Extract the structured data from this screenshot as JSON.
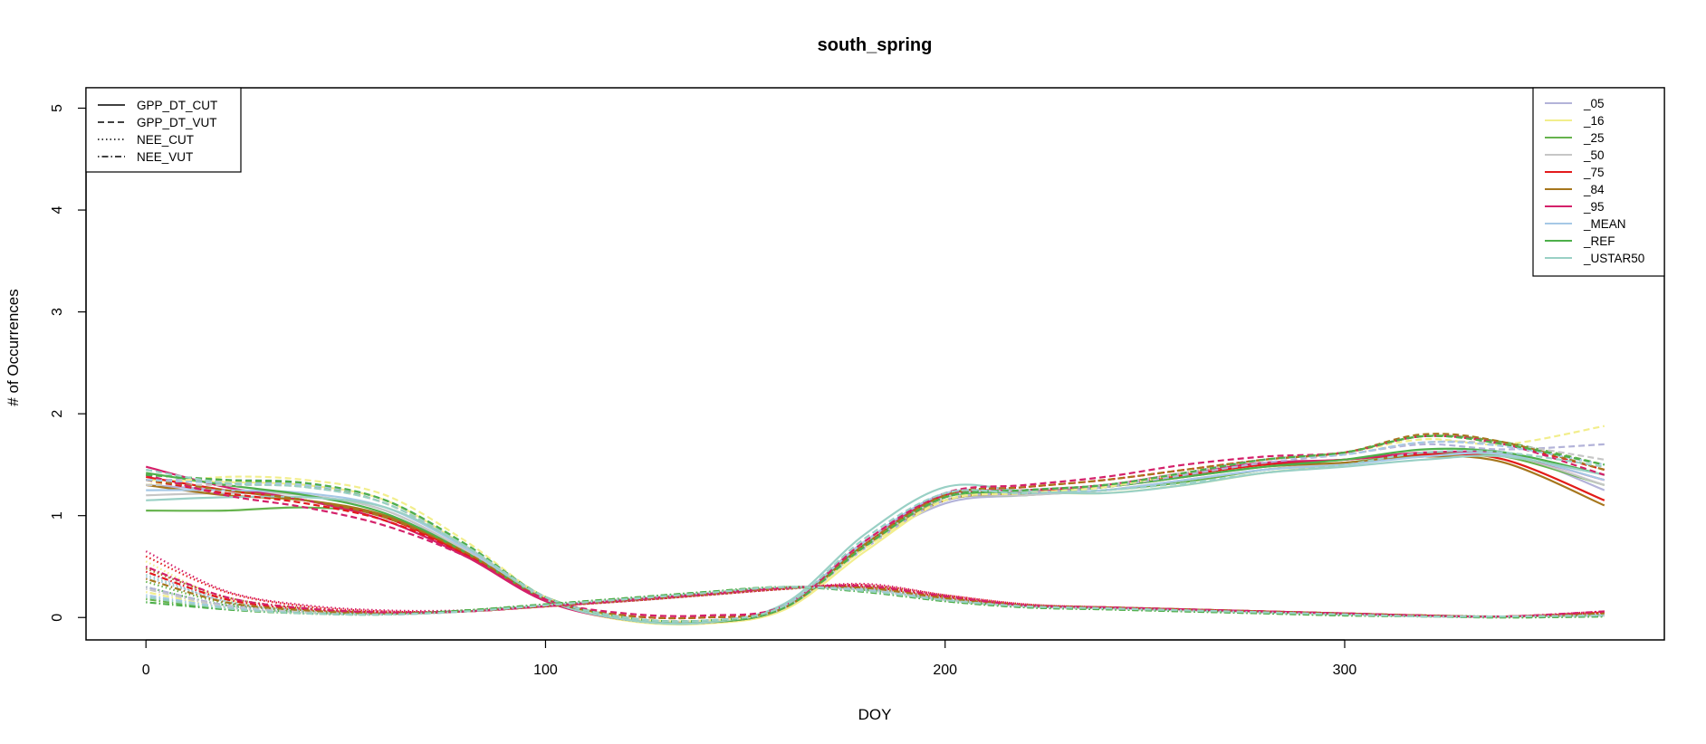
{
  "chart_data": {
    "type": "line",
    "title": "south_spring",
    "xlabel": "DOY",
    "ylabel": "# of Occurrences",
    "xlim": [
      -15,
      380
    ],
    "ylim": [
      -0.22,
      5.2
    ],
    "xticks": [
      0,
      100,
      200,
      300
    ],
    "yticks": [
      0,
      1,
      2,
      3,
      4,
      5
    ],
    "grid": false,
    "legend_linetype": {
      "placement": "top-left",
      "entries": [
        {
          "label": "GPP_DT_CUT",
          "dash": "solid"
        },
        {
          "label": "GPP_DT_VUT",
          "dash": "dashed"
        },
        {
          "label": "NEE_CUT",
          "dash": "dotted"
        },
        {
          "label": "NEE_VUT",
          "dash": "dotdash"
        }
      ]
    },
    "legend_color": {
      "placement": "top-right",
      "entries": [
        {
          "label": "_05",
          "color": "#b3b3d9"
        },
        {
          "label": "_16",
          "color": "#f2ee8c"
        },
        {
          "label": "_25",
          "color": "#66b34d"
        },
        {
          "label": "_50",
          "color": "#c6c6c6"
        },
        {
          "label": "_75",
          "color": "#e31a1c"
        },
        {
          "label": "_84",
          "color": "#a6761d"
        },
        {
          "label": "_95",
          "color": "#d4206a"
        },
        {
          "label": "_MEAN",
          "color": "#a6c8e6"
        },
        {
          "label": "_REF",
          "color": "#4daf4a"
        },
        {
          "label": "_USTAR50",
          "color": "#99d0c5"
        }
      ]
    },
    "x": [
      0,
      20,
      40,
      60,
      80,
      100,
      120,
      140,
      160,
      180,
      200,
      220,
      240,
      260,
      280,
      300,
      320,
      340,
      365
    ],
    "series": [
      {
        "legend_label": "_05",
        "variable": "GPP_DT_CUT",
        "values": [
          1.3,
          1.25,
          1.2,
          1.05,
          0.65,
          0.18,
          -0.02,
          -0.05,
          0.1,
          0.7,
          1.12,
          1.2,
          1.25,
          1.35,
          1.45,
          1.52,
          1.58,
          1.62,
          1.25
        ]
      },
      {
        "legend_label": "_16",
        "variable": "GPP_DT_CUT",
        "values": [
          1.35,
          1.33,
          1.3,
          1.15,
          0.7,
          0.18,
          -0.03,
          -0.06,
          0.08,
          0.65,
          1.15,
          1.22,
          1.22,
          1.3,
          1.42,
          1.5,
          1.58,
          1.55,
          1.15
        ]
      },
      {
        "legend_label": "_25",
        "variable": "GPP_DT_CUT",
        "values": [
          1.05,
          1.05,
          1.08,
          1.0,
          0.65,
          0.2,
          0.0,
          -0.04,
          0.1,
          0.72,
          1.15,
          1.2,
          1.25,
          1.33,
          1.45,
          1.52,
          1.6,
          1.58,
          1.3
        ]
      },
      {
        "legend_label": "_50",
        "variable": "GPP_DT_CUT",
        "values": [
          1.2,
          1.22,
          1.2,
          1.05,
          0.66,
          0.18,
          -0.02,
          -0.05,
          0.1,
          0.7,
          1.15,
          1.2,
          1.25,
          1.35,
          1.45,
          1.52,
          1.58,
          1.6,
          1.3
        ]
      },
      {
        "legend_label": "_75",
        "variable": "GPP_DT_CUT",
        "values": [
          1.38,
          1.25,
          1.15,
          0.98,
          0.62,
          0.17,
          -0.02,
          -0.05,
          0.1,
          0.72,
          1.18,
          1.24,
          1.3,
          1.4,
          1.5,
          1.55,
          1.6,
          1.55,
          1.15
        ]
      },
      {
        "legend_label": "_84",
        "variable": "GPP_DT_CUT",
        "values": [
          1.3,
          1.2,
          1.15,
          1.0,
          0.63,
          0.17,
          -0.02,
          -0.05,
          0.1,
          0.7,
          1.15,
          1.22,
          1.28,
          1.38,
          1.48,
          1.52,
          1.58,
          1.52,
          1.1
        ]
      },
      {
        "legend_label": "_95",
        "variable": "GPP_DT_CUT",
        "values": [
          1.48,
          1.28,
          1.15,
          0.95,
          0.6,
          0.16,
          -0.02,
          -0.05,
          0.12,
          0.75,
          1.2,
          1.25,
          1.3,
          1.42,
          1.52,
          1.55,
          1.62,
          1.6,
          1.35
        ]
      },
      {
        "legend_label": "_MEAN",
        "variable": "GPP_DT_CUT",
        "values": [
          1.25,
          1.25,
          1.22,
          1.08,
          0.68,
          0.18,
          -0.02,
          -0.05,
          0.12,
          0.75,
          1.22,
          1.22,
          1.25,
          1.35,
          1.45,
          1.5,
          1.58,
          1.6,
          1.35
        ]
      },
      {
        "legend_label": "_REF",
        "variable": "GPP_DT_CUT",
        "values": [
          1.42,
          1.3,
          1.2,
          1.02,
          0.64,
          0.18,
          -0.02,
          -0.05,
          0.1,
          0.72,
          1.18,
          1.22,
          1.28,
          1.38,
          1.48,
          1.55,
          1.65,
          1.62,
          1.4
        ]
      },
      {
        "legend_label": "_USTAR50",
        "variable": "GPP_DT_CUT",
        "values": [
          1.15,
          1.18,
          1.18,
          1.08,
          0.7,
          0.18,
          -0.02,
          -0.05,
          0.14,
          0.82,
          1.28,
          1.24,
          1.22,
          1.3,
          1.42,
          1.48,
          1.55,
          1.58,
          1.4
        ]
      },
      {
        "legend_label": "_05",
        "variable": "GPP_DT_VUT",
        "values": [
          1.35,
          1.35,
          1.32,
          1.15,
          0.72,
          0.2,
          0.0,
          -0.03,
          0.1,
          0.68,
          1.15,
          1.22,
          1.28,
          1.4,
          1.52,
          1.6,
          1.7,
          1.65,
          1.7
        ]
      },
      {
        "legend_label": "_16",
        "variable": "GPP_DT_VUT",
        "values": [
          1.3,
          1.38,
          1.35,
          1.2,
          0.75,
          0.2,
          0.0,
          -0.03,
          0.1,
          0.68,
          1.15,
          1.22,
          1.28,
          1.42,
          1.55,
          1.62,
          1.75,
          1.7,
          1.88
        ]
      },
      {
        "legend_label": "_25",
        "variable": "GPP_DT_VUT",
        "values": [
          1.4,
          1.35,
          1.3,
          1.12,
          0.7,
          0.2,
          0.0,
          -0.03,
          0.1,
          0.7,
          1.18,
          1.25,
          1.3,
          1.42,
          1.55,
          1.62,
          1.78,
          1.72,
          1.5
        ]
      },
      {
        "legend_label": "_50",
        "variable": "GPP_DT_VUT",
        "values": [
          1.3,
          1.3,
          1.28,
          1.12,
          0.7,
          0.2,
          0.0,
          -0.03,
          0.1,
          0.7,
          1.18,
          1.25,
          1.3,
          1.42,
          1.55,
          1.6,
          1.72,
          1.7,
          1.55
        ]
      },
      {
        "legend_label": "_75",
        "variable": "GPP_DT_VUT",
        "values": [
          1.35,
          1.22,
          1.12,
          0.95,
          0.62,
          0.18,
          0.02,
          0.0,
          0.1,
          0.72,
          1.2,
          1.28,
          1.35,
          1.45,
          1.55,
          1.62,
          1.78,
          1.7,
          1.45
        ]
      },
      {
        "legend_label": "_84",
        "variable": "GPP_DT_VUT",
        "values": [
          1.35,
          1.25,
          1.15,
          0.98,
          0.64,
          0.18,
          0.02,
          0.0,
          0.1,
          0.72,
          1.2,
          1.28,
          1.35,
          1.45,
          1.55,
          1.62,
          1.8,
          1.72,
          1.45
        ]
      },
      {
        "legend_label": "_95",
        "variable": "GPP_DT_VUT",
        "values": [
          1.4,
          1.2,
          1.08,
          0.9,
          0.6,
          0.18,
          0.04,
          0.02,
          0.12,
          0.75,
          1.22,
          1.3,
          1.38,
          1.5,
          1.58,
          1.62,
          1.78,
          1.7,
          1.4
        ]
      },
      {
        "legend_label": "_MEAN",
        "variable": "GPP_DT_VUT",
        "values": [
          1.35,
          1.32,
          1.3,
          1.15,
          0.72,
          0.2,
          0.0,
          -0.03,
          0.1,
          0.7,
          1.18,
          1.25,
          1.3,
          1.42,
          1.55,
          1.6,
          1.72,
          1.68,
          1.5
        ]
      },
      {
        "legend_label": "_REF",
        "variable": "GPP_DT_VUT",
        "values": [
          1.4,
          1.35,
          1.32,
          1.15,
          0.72,
          0.2,
          0.0,
          -0.03,
          0.1,
          0.7,
          1.18,
          1.25,
          1.3,
          1.42,
          1.55,
          1.62,
          1.78,
          1.7,
          1.5
        ]
      },
      {
        "legend_label": "_USTAR50",
        "variable": "GPP_DT_VUT",
        "values": [
          1.45,
          1.32,
          1.28,
          1.12,
          0.7,
          0.2,
          0.0,
          -0.03,
          0.12,
          0.78,
          1.22,
          1.22,
          1.25,
          1.32,
          1.42,
          1.5,
          1.62,
          1.62,
          1.48
        ]
      },
      {
        "legend_label": "_05",
        "variable": "NEE_CUT",
        "values": [
          0.45,
          0.15,
          0.06,
          0.04,
          0.07,
          0.12,
          0.17,
          0.22,
          0.28,
          0.3,
          0.2,
          0.12,
          0.1,
          0.08,
          0.06,
          0.04,
          0.02,
          0.01,
          0.04
        ]
      },
      {
        "legend_label": "_16",
        "variable": "NEE_CUT",
        "values": [
          0.55,
          0.18,
          0.07,
          0.04,
          0.06,
          0.11,
          0.16,
          0.22,
          0.28,
          0.3,
          0.2,
          0.12,
          0.1,
          0.08,
          0.06,
          0.04,
          0.02,
          0.01,
          0.03
        ]
      },
      {
        "legend_label": "_25",
        "variable": "NEE_CUT",
        "values": [
          0.35,
          0.14,
          0.06,
          0.04,
          0.07,
          0.12,
          0.18,
          0.24,
          0.3,
          0.28,
          0.18,
          0.11,
          0.09,
          0.07,
          0.05,
          0.03,
          0.02,
          0.01,
          0.02
        ]
      },
      {
        "legend_label": "_50",
        "variable": "NEE_CUT",
        "values": [
          0.5,
          0.17,
          0.07,
          0.04,
          0.06,
          0.11,
          0.16,
          0.22,
          0.29,
          0.3,
          0.19,
          0.12,
          0.1,
          0.08,
          0.06,
          0.04,
          0.02,
          0.01,
          0.03
        ]
      },
      {
        "legend_label": "_75",
        "variable": "NEE_CUT",
        "values": [
          0.6,
          0.25,
          0.11,
          0.06,
          0.06,
          0.11,
          0.16,
          0.22,
          0.28,
          0.32,
          0.22,
          0.13,
          0.1,
          0.08,
          0.06,
          0.04,
          0.02,
          0.01,
          0.05
        ]
      },
      {
        "legend_label": "_84",
        "variable": "NEE_CUT",
        "values": [
          0.48,
          0.2,
          0.09,
          0.05,
          0.06,
          0.11,
          0.16,
          0.22,
          0.28,
          0.31,
          0.21,
          0.12,
          0.1,
          0.08,
          0.06,
          0.04,
          0.02,
          0.01,
          0.04
        ]
      },
      {
        "legend_label": "_95",
        "variable": "NEE_CUT",
        "values": [
          0.65,
          0.26,
          0.12,
          0.07,
          0.07,
          0.11,
          0.16,
          0.22,
          0.28,
          0.33,
          0.22,
          0.13,
          0.1,
          0.08,
          0.06,
          0.04,
          0.02,
          0.01,
          0.06
        ]
      },
      {
        "legend_label": "_MEAN",
        "variable": "NEE_CUT",
        "values": [
          0.4,
          0.16,
          0.07,
          0.04,
          0.06,
          0.11,
          0.17,
          0.23,
          0.29,
          0.29,
          0.19,
          0.12,
          0.1,
          0.08,
          0.06,
          0.04,
          0.02,
          0.01,
          0.03
        ]
      },
      {
        "legend_label": "_REF",
        "variable": "NEE_CUT",
        "values": [
          0.3,
          0.12,
          0.05,
          0.04,
          0.07,
          0.12,
          0.18,
          0.24,
          0.3,
          0.27,
          0.17,
          0.11,
          0.09,
          0.07,
          0.05,
          0.03,
          0.02,
          0.01,
          0.02
        ]
      },
      {
        "legend_label": "_USTAR50",
        "variable": "NEE_CUT",
        "values": [
          0.42,
          0.16,
          0.07,
          0.04,
          0.06,
          0.11,
          0.17,
          0.23,
          0.29,
          0.28,
          0.18,
          0.12,
          0.1,
          0.08,
          0.06,
          0.04,
          0.02,
          0.01,
          0.02
        ]
      },
      {
        "legend_label": "_05",
        "variable": "NEE_VUT",
        "values": [
          0.3,
          0.12,
          0.05,
          0.03,
          0.06,
          0.12,
          0.18,
          0.24,
          0.29,
          0.28,
          0.18,
          0.11,
          0.09,
          0.07,
          0.05,
          0.03,
          0.01,
          0.01,
          0.02
        ]
      },
      {
        "legend_label": "_16",
        "variable": "NEE_VUT",
        "values": [
          0.25,
          0.1,
          0.04,
          0.03,
          0.06,
          0.12,
          0.18,
          0.24,
          0.3,
          0.27,
          0.17,
          0.11,
          0.09,
          0.07,
          0.05,
          0.03,
          0.01,
          0.01,
          0.02
        ]
      },
      {
        "legend_label": "_25",
        "variable": "NEE_VUT",
        "values": [
          0.18,
          0.08,
          0.04,
          0.03,
          0.07,
          0.13,
          0.19,
          0.25,
          0.3,
          0.26,
          0.16,
          0.1,
          0.08,
          0.06,
          0.04,
          0.02,
          0.01,
          0.0,
          0.01
        ]
      },
      {
        "legend_label": "_50",
        "variable": "NEE_VUT",
        "values": [
          0.28,
          0.11,
          0.05,
          0.03,
          0.06,
          0.12,
          0.18,
          0.24,
          0.29,
          0.27,
          0.17,
          0.11,
          0.09,
          0.07,
          0.05,
          0.03,
          0.01,
          0.01,
          0.02
        ]
      },
      {
        "legend_label": "_75",
        "variable": "NEE_VUT",
        "values": [
          0.45,
          0.18,
          0.08,
          0.05,
          0.06,
          0.11,
          0.17,
          0.23,
          0.29,
          0.3,
          0.2,
          0.12,
          0.1,
          0.08,
          0.06,
          0.04,
          0.02,
          0.01,
          0.05
        ]
      },
      {
        "legend_label": "_84",
        "variable": "NEE_VUT",
        "values": [
          0.38,
          0.15,
          0.07,
          0.04,
          0.06,
          0.11,
          0.17,
          0.23,
          0.29,
          0.29,
          0.19,
          0.12,
          0.1,
          0.08,
          0.06,
          0.04,
          0.02,
          0.01,
          0.04
        ]
      },
      {
        "legend_label": "_95",
        "variable": "NEE_VUT",
        "values": [
          0.5,
          0.2,
          0.09,
          0.05,
          0.06,
          0.11,
          0.17,
          0.23,
          0.29,
          0.31,
          0.21,
          0.12,
          0.1,
          0.08,
          0.06,
          0.04,
          0.02,
          0.01,
          0.06
        ]
      },
      {
        "legend_label": "_MEAN",
        "variable": "NEE_VUT",
        "values": [
          0.22,
          0.1,
          0.04,
          0.03,
          0.06,
          0.12,
          0.18,
          0.24,
          0.3,
          0.27,
          0.17,
          0.11,
          0.09,
          0.07,
          0.05,
          0.03,
          0.01,
          0.01,
          0.02
        ]
      },
      {
        "legend_label": "_REF",
        "variable": "NEE_VUT",
        "values": [
          0.15,
          0.08,
          0.04,
          0.03,
          0.07,
          0.13,
          0.19,
          0.25,
          0.3,
          0.25,
          0.16,
          0.1,
          0.08,
          0.06,
          0.04,
          0.02,
          0.01,
          0.0,
          0.01
        ]
      },
      {
        "legend_label": "_USTAR50",
        "variable": "NEE_VUT",
        "values": [
          0.2,
          0.09,
          0.04,
          0.03,
          0.06,
          0.12,
          0.18,
          0.24,
          0.3,
          0.26,
          0.17,
          0.11,
          0.09,
          0.07,
          0.05,
          0.03,
          0.01,
          0.01,
          0.02
        ]
      }
    ]
  }
}
